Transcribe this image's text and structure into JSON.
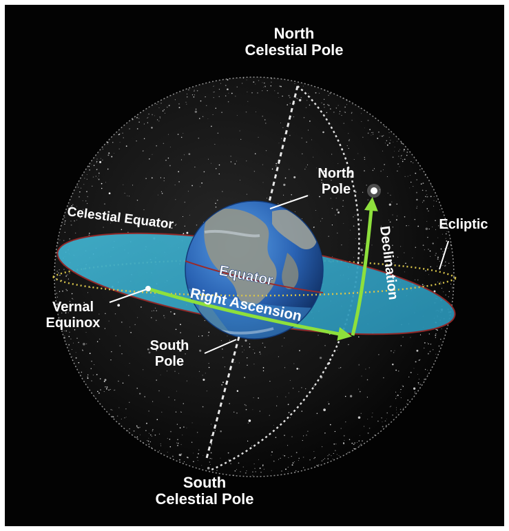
{
  "labels": {
    "north_celestial_pole": [
      "North",
      "Celestial Pole"
    ],
    "south_celestial_pole": [
      "South",
      "Celestial Pole"
    ],
    "north_pole": [
      "North",
      "Pole"
    ],
    "south_pole": [
      "South",
      "Pole"
    ],
    "vernal_equinox": [
      "Vernal",
      "Equinox"
    ],
    "ecliptic": "Ecliptic",
    "celestial_equator": "Celestial Equator",
    "equator": "Equator",
    "right_ascension": "Right Ascension",
    "declination": "Declination"
  },
  "colors": {
    "background": "#030303",
    "frame": "#ffffff",
    "celestial_equator_plane": "#35a6c4",
    "celestial_equator_rim": "#9a2a2a",
    "ecliptic": "#d8c44a",
    "arrows": "#8ee03c",
    "earth_ocean": "#2a6fc4",
    "earth_land": "#8a8f8a",
    "stars": "#ffffff"
  }
}
